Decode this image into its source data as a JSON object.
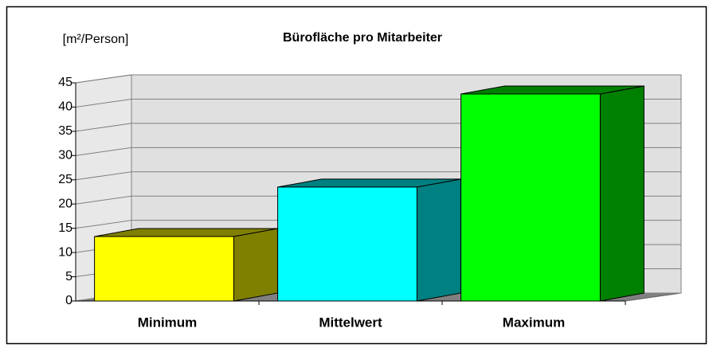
{
  "chart_data": {
    "type": "bar3d",
    "title": "Bürofläche pro Mitarbeiter",
    "y_label": "[m²/Person]",
    "categories": [
      "Minimum",
      "Mittelwert",
      "Maximum"
    ],
    "values": [
      13.3,
      23.5,
      42.7
    ],
    "colors": [
      "#ffff00",
      "#00ffff",
      "#00ff00"
    ],
    "ylim": [
      0,
      45
    ],
    "yticks": [
      0,
      5,
      10,
      15,
      20,
      25,
      30,
      35,
      40,
      45
    ],
    "grid": true
  }
}
